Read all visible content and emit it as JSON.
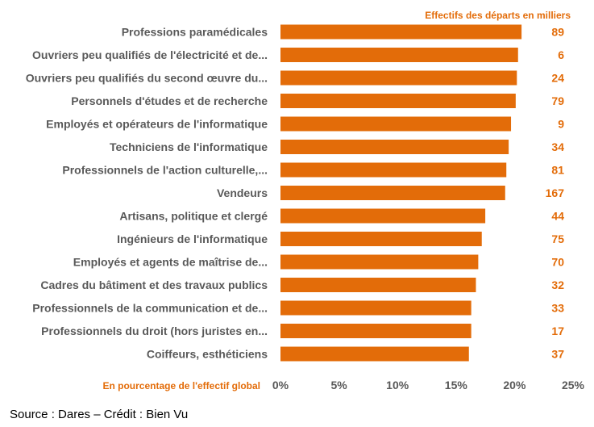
{
  "chart_data": {
    "type": "bar",
    "orientation": "horizontal",
    "categories": [
      "Professions paramédicales",
      "Ouvriers peu qualifiés de l'électricité et de...",
      "Ouvriers peu qualifiés du second œuvre du...",
      "Personnels d'études et de recherche",
      "Employés et opérateurs de l'informatique",
      "Techniciens de l'informatique",
      "Professionnels de l'action culturelle,...",
      "Vendeurs",
      "Artisans, politique et clergé",
      "Ingénieurs de l'informatique",
      "Employés et agents de maîtrise de...",
      "Cadres du bâtiment et des travaux publics",
      "Professionnels de la communication et de...",
      "Professionnels du droit (hors juristes en...",
      "Coiffeurs, esthéticiens"
    ],
    "values": [
      20.6,
      20.3,
      20.2,
      20.1,
      19.7,
      19.5,
      19.3,
      19.2,
      17.5,
      17.2,
      16.9,
      16.7,
      16.3,
      16.3,
      16.1
    ],
    "departures_thousands": [
      89,
      6,
      24,
      79,
      9,
      34,
      81,
      167,
      44,
      75,
      70,
      32,
      33,
      17,
      37
    ],
    "departures_label": "Effectifs des départs en milliers",
    "xlabel": "En pourcentage de l'effectif global",
    "xlim": [
      0,
      25
    ],
    "xticks": [
      "0%",
      "5%",
      "10%",
      "15%",
      "20%",
      "25%"
    ],
    "xtick_values": [
      0,
      5,
      10,
      15,
      20,
      25
    ],
    "grid": false,
    "bar_color": "#e36c09",
    "label_color": "#595959",
    "accent_color": "#e36c09"
  },
  "source_text": "Source : Dares – Crédit : Bien Vu"
}
